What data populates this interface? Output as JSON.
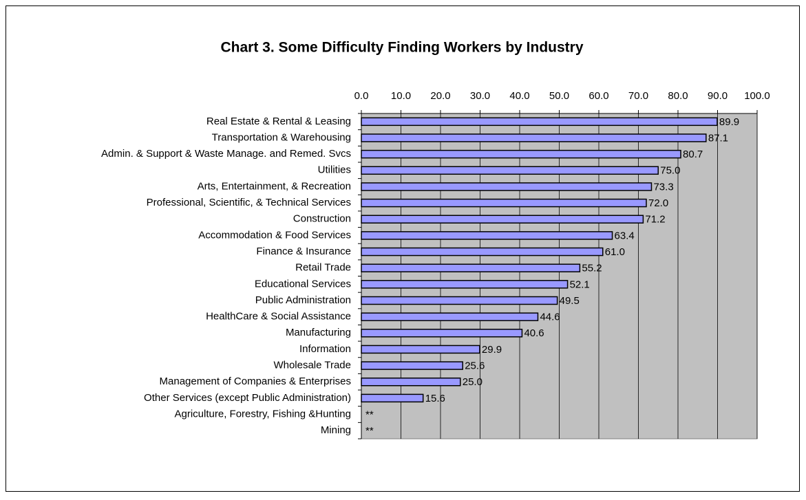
{
  "chart_data": {
    "type": "bar",
    "orientation": "horizontal",
    "title": "Chart 3.  Some Difficulty Finding Workers by Industry",
    "categories": [
      "Real Estate & Rental & Leasing",
      "Transportation & Warehousing",
      "Admin. & Support & Waste Manage. and Remed. Svcs",
      "Utilities",
      "Arts, Entertainment, & Recreation",
      "Professional, Scientific, & Technical Services",
      "Construction",
      "Accommodation & Food Services",
      "Finance & Insurance",
      "Retail Trade",
      "Educational Services",
      "Public Administration",
      "HealthCare & Social Assistance",
      "Manufacturing",
      "Information",
      "Wholesale Trade",
      "Management of Companies & Enterprises",
      "Other Services (except Public Administration)",
      "Agriculture, Forestry, Fishing &Hunting",
      "Mining"
    ],
    "values": [
      89.9,
      87.1,
      80.7,
      75.0,
      73.3,
      72.0,
      71.2,
      63.4,
      61.0,
      55.2,
      52.1,
      49.5,
      44.6,
      40.6,
      29.9,
      25.6,
      25.0,
      15.6,
      null,
      null
    ],
    "value_labels": [
      "89.9",
      "87.1",
      "80.7",
      "75.0",
      "73.3",
      "72.0",
      "71.2",
      "63.4",
      "61.0",
      "55.2",
      "52.1",
      "49.5",
      "44.6",
      "40.6",
      "29.9",
      "25.6",
      "25.0",
      "15.6",
      "**",
      "**"
    ],
    "color": "#9999ff",
    "plot_background": "#c0c0c0",
    "xlim": [
      0,
      100
    ],
    "xticks": [
      {
        "value": 0,
        "label": "0.0"
      },
      {
        "value": 10,
        "label": "10.0"
      },
      {
        "value": 20,
        "label": "20.0"
      },
      {
        "value": 30,
        "label": "30.0"
      },
      {
        "value": 40,
        "label": "40.0"
      },
      {
        "value": 50,
        "label": "50.0"
      },
      {
        "value": 60,
        "label": "60.0"
      },
      {
        "value": 70,
        "label": "70.0"
      },
      {
        "value": 80,
        "label": "80.0"
      },
      {
        "value": 90,
        "label": "90.0"
      },
      {
        "value": 100,
        "label": "100.0"
      }
    ],
    "grid": true
  }
}
